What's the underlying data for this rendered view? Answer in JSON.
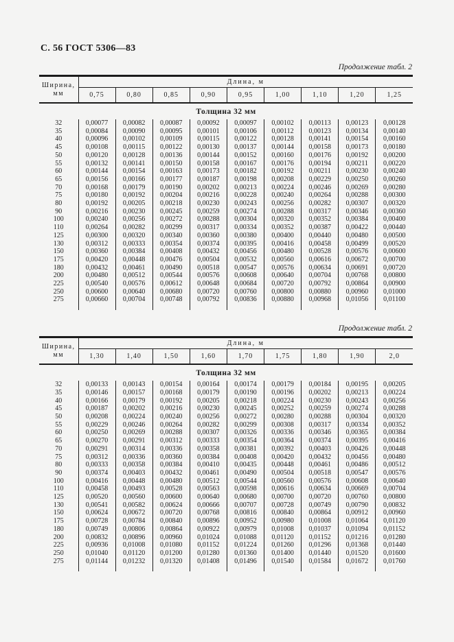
{
  "page": {
    "header": "С. 56 ГОСТ 5306—83"
  },
  "tables": [
    {
      "continuation": "Продолжение табл. 2",
      "corner_label_line1": "Ширина,",
      "corner_label_line2": "мм",
      "length_label": "Длина, м",
      "section_title": "Толщина 32 мм",
      "columns": [
        "0,75",
        "0,80",
        "0,85",
        "0,90",
        "0,95",
        "1,00",
        "1,10",
        "1,20",
        "1,25"
      ],
      "rows": [
        {
          "width": "32",
          "values": [
            "0,00077",
            "0,00082",
            "0,00087",
            "0,00092",
            "0,00097",
            "0,00102",
            "0,00113",
            "0,00123",
            "0,00128"
          ]
        },
        {
          "width": "35",
          "values": [
            "0,00084",
            "0,00090",
            "0,00095",
            "0,00101",
            "0,00106",
            "0,00112",
            "0,00123",
            "0,00134",
            "0,00140"
          ]
        },
        {
          "width": "40",
          "values": [
            "0,00096",
            "0,00102",
            "0,00109",
            "0,00115",
            "0,00122",
            "0,00128",
            "0,00141",
            "0,00154",
            "0,00160"
          ]
        },
        {
          "width": "45",
          "values": [
            "0,00108",
            "0,00115",
            "0,00122",
            "0,00130",
            "0,00137",
            "0,00144",
            "0,00158",
            "0,00173",
            "0,00180"
          ]
        },
        {
          "width": "50",
          "values": [
            "0,00120",
            "0,00128",
            "0,00136",
            "0,00144",
            "0,00152",
            "0,00160",
            "0,00176",
            "0,00192",
            "0,00200"
          ]
        },
        {
          "width": "55",
          "values": [
            "0,00132",
            "0,00141",
            "0,00150",
            "0,00158",
            "0,00167",
            "0,00176",
            "0,00194",
            "0,00211",
            "0,00220"
          ]
        },
        {
          "width": "60",
          "values": [
            "0,00144",
            "0,00154",
            "0,00163",
            "0,00173",
            "0,00182",
            "0,00192",
            "0,00211",
            "0,00230",
            "0,00240"
          ]
        },
        {
          "width": "65",
          "values": [
            "0,00156",
            "0,00166",
            "0,00177",
            "0,00187",
            "0,00198",
            "0,00208",
            "0,00229",
            "0,00250",
            "0,00260"
          ]
        },
        {
          "width": "70",
          "values": [
            "0,00168",
            "0,00179",
            "0,00190",
            "0,00202",
            "0,00213",
            "0,00224",
            "0,00246",
            "0,00269",
            "0,00280"
          ]
        },
        {
          "width": "75",
          "values": [
            "0,00180",
            "0,00192",
            "0,00204",
            "0,00216",
            "0,00228",
            "0,00240",
            "0,00264",
            "0,00288",
            "0,00300"
          ]
        },
        {
          "width": "80",
          "values": [
            "0,00192",
            "0,00205",
            "0,00218",
            "0,00230",
            "0,00243",
            "0,00256",
            "0,00282",
            "0,00307",
            "0,00320"
          ]
        },
        {
          "width": "90",
          "values": [
            "0,00216",
            "0,00230",
            "0,00245",
            "0,00259",
            "0,00274",
            "0,00288",
            "0,00317",
            "0,00346",
            "0,00360"
          ]
        },
        {
          "width": "100",
          "values": [
            "0,00240",
            "0,00256",
            "0,00272",
            "0,00288",
            "0,00304",
            "0,00320",
            "0,00352",
            "0,00384",
            "0,00400"
          ]
        },
        {
          "width": "110",
          "values": [
            "0,00264",
            "0,00282",
            "0,00299",
            "0,00317",
            "0,00334",
            "0,00352",
            "0,00387",
            "0,00422",
            "0,00440"
          ]
        },
        {
          "width": "125",
          "values": [
            "0,00300",
            "0,00320",
            "0,00340",
            "0,00360",
            "0,00380",
            "0,00400",
            "0,00440",
            "0,00480",
            "0,00500"
          ]
        },
        {
          "width": "130",
          "values": [
            "0,00312",
            "0,00333",
            "0,00354",
            "0,00374",
            "0,00395",
            "0,00416",
            "0,00458",
            "0,00499",
            "0,00520"
          ]
        },
        {
          "width": "150",
          "values": [
            "0,00360",
            "0,00384",
            "0,00408",
            "0,00432",
            "0,00456",
            "0,00480",
            "0,00528",
            "0,00576",
            "0,00600"
          ]
        },
        {
          "width": "175",
          "values": [
            "0,00420",
            "0,00448",
            "0,00476",
            "0,00504",
            "0,00532",
            "0,00560",
            "0,00616",
            "0,00672",
            "0,00700"
          ]
        },
        {
          "width": "180",
          "values": [
            "0,00432",
            "0,00461",
            "0,00490",
            "0,00518",
            "0,00547",
            "0,00576",
            "0,00634",
            "0,00691",
            "0,00720"
          ]
        },
        {
          "width": "200",
          "values": [
            "0,00480",
            "0,00512",
            "0,00544",
            "0,00576",
            "0,00608",
            "0,00640",
            "0,00704",
            "0,00768",
            "0,00800"
          ]
        },
        {
          "width": "225",
          "values": [
            "0,00540",
            "0,00576",
            "0,00612",
            "0,00648",
            "0,00684",
            "0,00720",
            "0,00792",
            "0,00864",
            "0,00900"
          ]
        },
        {
          "width": "250",
          "values": [
            "0,00600",
            "0,00640",
            "0,00680",
            "0,00720",
            "0,00760",
            "0,00800",
            "0,00880",
            "0,00960",
            "0,01000"
          ]
        },
        {
          "width": "275",
          "values": [
            "0,00660",
            "0,00704",
            "0,00748",
            "0,00792",
            "0,00836",
            "0,00880",
            "0,00968",
            "0,01056",
            "0,01100"
          ]
        }
      ]
    },
    {
      "continuation": "Продолжение табл. 2",
      "corner_label_line1": "Ширина,",
      "corner_label_line2": "мм",
      "length_label": "Длина, м",
      "section_title": "Толщина 32 мм",
      "columns": [
        "1,30",
        "1,40",
        "1,50",
        "1,60",
        "1,70",
        "1,75",
        "1,80",
        "1,90",
        "2,0"
      ],
      "rows": [
        {
          "width": "32",
          "values": [
            "0,00133",
            "0,00143",
            "0,00154",
            "0,00164",
            "0,00174",
            "0,00179",
            "0,00184",
            "0,00195",
            "0,00205"
          ]
        },
        {
          "width": "35",
          "values": [
            "0,00146",
            "0,00157",
            "0,00168",
            "0,00179",
            "0,00190",
            "0,00196",
            "0,00202",
            "0,00213",
            "0,00224"
          ]
        },
        {
          "width": "40",
          "values": [
            "0,00166",
            "0,00179",
            "0,00192",
            "0,00205",
            "0,00218",
            "0,00224",
            "0,00230",
            "0,00243",
            "0,00256"
          ]
        },
        {
          "width": "45",
          "values": [
            "0,00187",
            "0,00202",
            "0,00216",
            "0,00230",
            "0,00245",
            "0,00252",
            "0,00259",
            "0,00274",
            "0,00288"
          ]
        },
        {
          "width": "50",
          "values": [
            "0,00208",
            "0,00224",
            "0,00240",
            "0,00256",
            "0,00272",
            "0,00280",
            "0,00288",
            "0,00304",
            "0,00320"
          ]
        },
        {
          "width": "55",
          "values": [
            "0,00229",
            "0,00246",
            "0,00264",
            "0,00282",
            "0,00299",
            "0,00308",
            "0,00317",
            "0,00334",
            "0,00352"
          ]
        },
        {
          "width": "60",
          "values": [
            "0,00250",
            "0,00269",
            "0,00288",
            "0,00307",
            "0,00326",
            "0,00336",
            "0,00346",
            "0,00365",
            "0,00384"
          ]
        },
        {
          "width": "65",
          "values": [
            "0,00270",
            "0,00291",
            "0,00312",
            "0,00333",
            "0,00354",
            "0,00364",
            "0,00374",
            "0,00395",
            "0,00416"
          ]
        },
        {
          "width": "70",
          "values": [
            "0,00291",
            "0,00314",
            "0,00336",
            "0,00358",
            "0,00381",
            "0,00392",
            "0,00403",
            "0,00426",
            "0,00448"
          ]
        },
        {
          "width": "75",
          "values": [
            "0,00312",
            "0,00336",
            "0,00360",
            "0,00384",
            "0,00408",
            "0,00420",
            "0,00432",
            "0,00456",
            "0,00480"
          ]
        },
        {
          "width": "80",
          "values": [
            "0,00333",
            "0,00358",
            "0,00384",
            "0,00410",
            "0,00435",
            "0,00448",
            "0,00461",
            "0,00486",
            "0,00512"
          ]
        },
        {
          "width": "90",
          "values": [
            "0,00374",
            "0,00403",
            "0,00432",
            "0,00461",
            "0,00490",
            "0,00504",
            "0,00518",
            "0,00547",
            "0,00576"
          ]
        },
        {
          "width": "100",
          "values": [
            "0,00416",
            "0,00448",
            "0,00480",
            "0,00512",
            "0,00544",
            "0,00560",
            "0,00576",
            "0,00608",
            "0,00640"
          ]
        },
        {
          "width": "110",
          "values": [
            "0,00458",
            "0,00493",
            "0,00528",
            "0,00563",
            "0,00598",
            "0,00616",
            "0,00634",
            "0,00669",
            "0,00704"
          ]
        },
        {
          "width": "125",
          "values": [
            "0,00520",
            "0,00560",
            "0,00600",
            "0,00640",
            "0,00680",
            "0,00700",
            "0,00720",
            "0,00760",
            "0,00800"
          ]
        },
        {
          "width": "130",
          "values": [
            "0,00541",
            "0,00582",
            "0,00624",
            "0,00666",
            "0,00707",
            "0,00728",
            "0,00749",
            "0,00790",
            "0,00832"
          ]
        },
        {
          "width": "150",
          "values": [
            "0,00624",
            "0,00672",
            "0,00720",
            "0,00768",
            "0,00816",
            "0,00840",
            "0,00864",
            "0,00912",
            "0,00960"
          ]
        },
        {
          "width": "175",
          "values": [
            "0,00728",
            "0,00784",
            "0,00840",
            "0,00896",
            "0,00952",
            "0,00980",
            "0,01008",
            "0,01064",
            "0,01120"
          ]
        },
        {
          "width": "180",
          "values": [
            "0,00749",
            "0,00806",
            "0,00864",
            "0,00922",
            "0,00979",
            "0,01008",
            "0,01037",
            "0,01094",
            "0,01152"
          ]
        },
        {
          "width": "200",
          "values": [
            "0,00832",
            "0,00896",
            "0,00960",
            "0,01024",
            "0,01088",
            "0,01120",
            "0,01152",
            "0,01216",
            "0,01280"
          ]
        },
        {
          "width": "225",
          "values": [
            "0,00936",
            "0,01008",
            "0,01080",
            "0,01152",
            "0,01224",
            "0,01260",
            "0,01296",
            "0,01368",
            "0,01440"
          ]
        },
        {
          "width": "250",
          "values": [
            "0,01040",
            "0,01120",
            "0,01200",
            "0,01280",
            "0,01360",
            "0,01400",
            "0,01440",
            "0,01520",
            "0,01600"
          ]
        },
        {
          "width": "275",
          "values": [
            "0,01144",
            "0,01232",
            "0,01320",
            "0,01408",
            "0,01496",
            "0,01540",
            "0,01584",
            "0,01672",
            "0,01760"
          ]
        }
      ]
    }
  ]
}
